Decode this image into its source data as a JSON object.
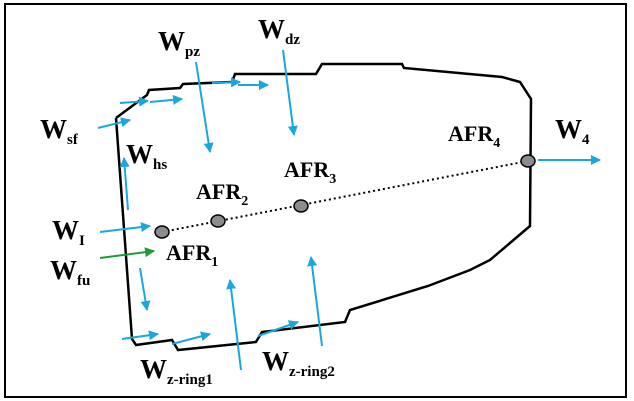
{
  "colors": {
    "frame": "#000000",
    "arrow_blue": "#1aa7de",
    "arrow_green": "#1f9a3a",
    "node_fill": "#8c8c8c",
    "outline": "#000000"
  },
  "flows": {
    "w_sf": {
      "main": "W",
      "sub": "sf"
    },
    "w_pz": {
      "main": "W",
      "sub": "pz"
    },
    "w_dz": {
      "main": "W",
      "sub": "dz"
    },
    "w_hs": {
      "main": "W",
      "sub": "hs"
    },
    "w_i": {
      "main": "W",
      "sub": "I"
    },
    "w_fu": {
      "main": "W",
      "sub": "fu"
    },
    "w_4": {
      "main": "W",
      "sub": "4"
    },
    "w_zring1": {
      "main": "W",
      "sub": "z-ring1"
    },
    "w_zring2": {
      "main": "W",
      "sub": "z-ring2"
    }
  },
  "nodes": {
    "afr1": {
      "main": "AFR",
      "sub": "1"
    },
    "afr2": {
      "main": "AFR",
      "sub": "2"
    },
    "afr3": {
      "main": "AFR",
      "sub": "3"
    },
    "afr4": {
      "main": "AFR",
      "sub": "4"
    }
  }
}
